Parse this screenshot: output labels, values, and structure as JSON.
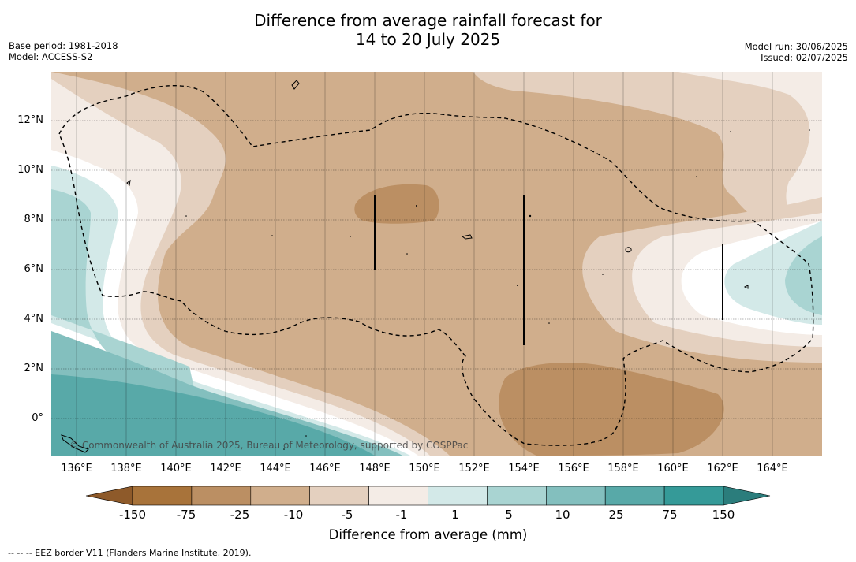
{
  "title_line1": "Difference from average rainfall forecast for",
  "title_line2": "14 to 20 July 2025",
  "base_period": "Base period: 1981-2018",
  "model": "Model: ACCESS-S2",
  "model_run": "Model run: 30/06/2025",
  "issued": "Issued: 02/07/2025",
  "copyright": "© Commonwealth of Australia 2025, Bureau of Meteorology, supported by COSPPac",
  "footnote": "--  --  -- EEZ border V11 (Flanders Marine Institute, 2019).",
  "x_ticks": [
    "136°E",
    "138°E",
    "140°E",
    "142°E",
    "144°E",
    "146°E",
    "148°E",
    "150°E",
    "152°E",
    "154°E",
    "156°E",
    "158°E",
    "160°E",
    "162°E",
    "164°E"
  ],
  "y_ticks": [
    "12°N",
    "10°N",
    "8°N",
    "6°N",
    "4°N",
    "2°N",
    "0°"
  ],
  "colorbar": {
    "title": "Difference from average (mm)",
    "labels": [
      "-150",
      "-75",
      "-25",
      "-10",
      "-5",
      "-1",
      "1",
      "5",
      "10",
      "25",
      "75",
      "150"
    ],
    "colors": [
      "#a8733a",
      "#bb8f63",
      "#d0ae8c",
      "#e4d0bf",
      "#f4ece6",
      "#ffffff",
      "#d3e9e8",
      "#a9d4d2",
      "#83bfbe",
      "#58a9a8",
      "#359a98",
      "#2b7d7c"
    ]
  },
  "chart_data": {
    "type": "heatmap",
    "x_range_degE": [
      135,
      166
    ],
    "y_range_degN": [
      -1.5,
      14
    ],
    "units": "mm",
    "levels": [
      -150,
      -75,
      -25,
      -10,
      -5,
      -1,
      1,
      5,
      10,
      25,
      75,
      150
    ]
  }
}
